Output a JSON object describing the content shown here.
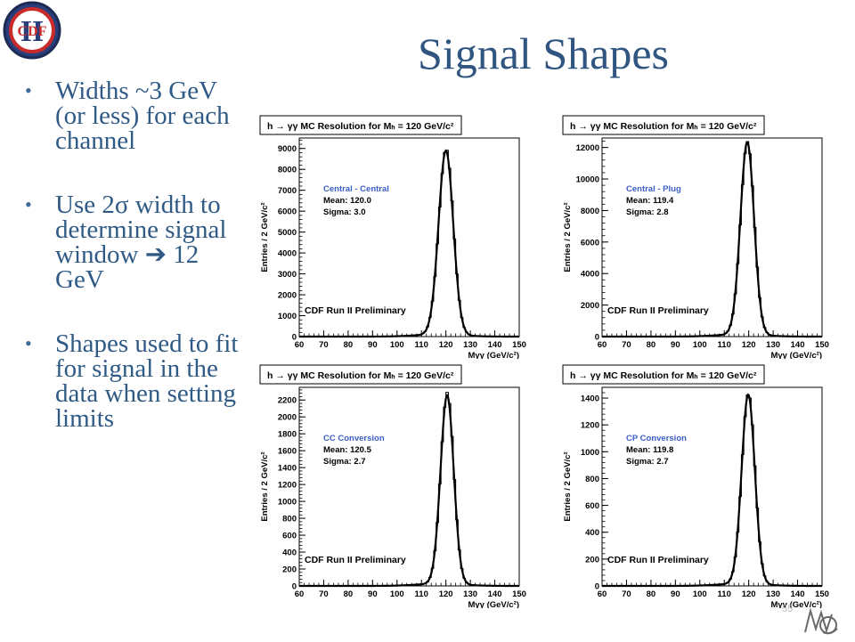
{
  "slide": {
    "title": "Signal Shapes",
    "page_number": "55",
    "bullets": [
      "Widths ~3 GeV (or less) for each channel",
      "Use 2σ width to determine signal window  ➔ 12 GeV",
      "Shapes used to fit for signal in the data when setting limits"
    ],
    "logo_text": "CDF",
    "logo_roman": "II"
  },
  "colors": {
    "title": "#2f5580",
    "bullet_text": "#2f5a86",
    "label_blue": "#3b5ec8"
  },
  "chart_data": [
    {
      "type": "line",
      "title": "h → γγ MC Resolution for Mₕ = 120 GeV/c²",
      "xlabel": "Mγγ (GeV/c²)",
      "ylabel": "Entries / 2 GeV/c²",
      "xlim": [
        60,
        150
      ],
      "ylim": [
        0,
        9500
      ],
      "xticks": [
        60,
        70,
        80,
        90,
        100,
        110,
        120,
        130,
        140,
        150
      ],
      "yticks": [
        0,
        1000,
        2000,
        3000,
        4000,
        5000,
        6000,
        7000,
        8000,
        9000
      ],
      "category": "Central - Central",
      "mean_text": "Mean: 120.0",
      "sigma_text": "Sigma: 3.0",
      "mean": 120.0,
      "sigma": 3.0,
      "peak": 8800,
      "annotation": "CDF Run II Preliminary"
    },
    {
      "type": "line",
      "title": "h → γγ MC Resolution for Mₕ = 120 GeV/c²",
      "xlabel": "Mγγ (GeV/c²)",
      "ylabel": "Entries / 2 GeV/c²",
      "xlim": [
        60,
        150
      ],
      "ylim": [
        0,
        12600
      ],
      "xticks": [
        60,
        70,
        80,
        90,
        100,
        110,
        120,
        130,
        140,
        150
      ],
      "yticks": [
        0,
        2000,
        4000,
        6000,
        8000,
        10000,
        12000
      ],
      "category": "Central - Plug",
      "mean_text": "Mean: 119.4",
      "sigma_text": "Sigma: 2.8",
      "mean": 119.4,
      "sigma": 2.8,
      "peak": 12200,
      "annotation": "CDF Run II Preliminary"
    },
    {
      "type": "line",
      "title": "h → γγ MC Resolution for Mₕ = 120 GeV/c²",
      "xlabel": "Mγγ (GeV/c²)",
      "ylabel": "Entries / 2 GeV/c²",
      "xlim": [
        60,
        150
      ],
      "ylim": [
        0,
        2350
      ],
      "xticks": [
        60,
        70,
        80,
        90,
        100,
        110,
        120,
        130,
        140,
        150
      ],
      "yticks": [
        0,
        200,
        400,
        600,
        800,
        1000,
        1200,
        1400,
        1600,
        1800,
        2000,
        2200
      ],
      "category": "CC Conversion",
      "mean_text": "Mean: 120.5",
      "sigma_text": "Sigma: 2.7",
      "mean": 120.5,
      "sigma": 2.7,
      "peak": 2230,
      "annotation": "CDF Run II Preliminary"
    },
    {
      "type": "line",
      "title": "h → γγ MC Resolution for Mₕ = 120 GeV/c²",
      "xlabel": "Mγγ (GeV/c²)",
      "ylabel": "Entries / 2 GeV/c²",
      "xlim": [
        60,
        150
      ],
      "ylim": [
        0,
        1480
      ],
      "xticks": [
        60,
        70,
        80,
        90,
        100,
        110,
        120,
        130,
        140,
        150
      ],
      "yticks": [
        0,
        200,
        400,
        600,
        800,
        1000,
        1200,
        1400
      ],
      "category": "CP Conversion",
      "mean_text": "Mean: 119.8",
      "sigma_text": "Sigma: 2.7",
      "mean": 119.8,
      "sigma": 2.7,
      "peak": 1410,
      "annotation": "CDF Run II Preliminary"
    }
  ]
}
